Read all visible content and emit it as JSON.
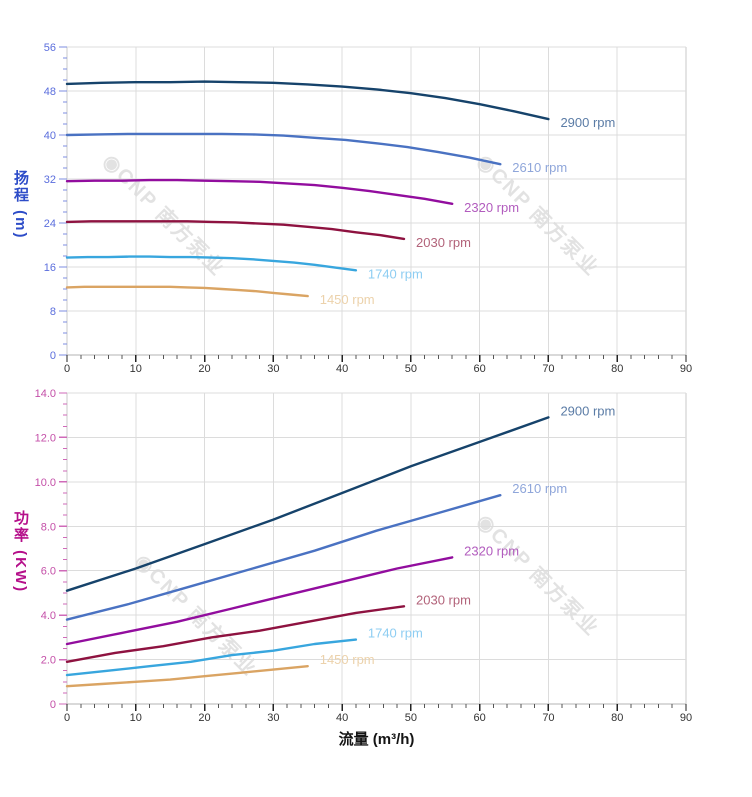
{
  "watermark": {
    "text": "CNP 南方泵业",
    "logo_glyph": "◉",
    "color": "rgba(140,140,140,0.25)"
  },
  "x_axis": {
    "title": "流量 (m³/h)",
    "min": 0,
    "max": 90,
    "major_step": 10,
    "minor_step": 2,
    "tick_labels": [
      "0",
      "10",
      "20",
      "30",
      "40",
      "50",
      "60",
      "70",
      "80",
      "90"
    ],
    "tick_label_color": "#333333"
  },
  "chart_data": [
    {
      "type": "line",
      "title": "",
      "xlabel": "流量 (m³/h)",
      "ylabel": "扬程 (m)",
      "xlim": [
        0,
        90
      ],
      "ylim": [
        0,
        56
      ],
      "y_major": 8,
      "y_minor": 2,
      "y_tick_labels": [
        "0",
        "8",
        "16",
        "24",
        "32",
        "40",
        "48",
        "56"
      ],
      "grid": true,
      "legend_position": "curve-end-right",
      "axis_title_color": "#2d4cc8",
      "tick_label_color": "#5b6edd",
      "tick_color": "#7c8ce0",
      "series": [
        {
          "name": "2900 rpm",
          "color": "#16436b",
          "label_color": "#5b7ca6",
          "points": [
            [
              0,
              49.3
            ],
            [
              5,
              49.5
            ],
            [
              10,
              49.6
            ],
            [
              15,
              49.6
            ],
            [
              20,
              49.7
            ],
            [
              25,
              49.6
            ],
            [
              30,
              49.5
            ],
            [
              35,
              49.2
            ],
            [
              40,
              48.8
            ],
            [
              45,
              48.3
            ],
            [
              50,
              47.6
            ],
            [
              55,
              46.7
            ],
            [
              60,
              45.6
            ],
            [
              65,
              44.3
            ],
            [
              70,
              42.9
            ]
          ]
        },
        {
          "name": "2610 rpm",
          "color": "#4a72c2",
          "label_color": "#8fa6da",
          "points": [
            [
              0,
              40.0
            ],
            [
              4.5,
              40.1
            ],
            [
              9,
              40.2
            ],
            [
              13.5,
              40.2
            ],
            [
              18,
              40.2
            ],
            [
              22.5,
              40.2
            ],
            [
              27,
              40.1
            ],
            [
              31.5,
              39.9
            ],
            [
              36,
              39.5
            ],
            [
              40.5,
              39.1
            ],
            [
              45,
              38.5
            ],
            [
              49.5,
              37.8
            ],
            [
              54,
              36.9
            ],
            [
              58.5,
              35.9
            ],
            [
              63,
              34.7
            ]
          ]
        },
        {
          "name": "2320 rpm",
          "color": "#920d9e",
          "label_color": "#b25cbe",
          "points": [
            [
              0,
              31.6
            ],
            [
              4,
              31.7
            ],
            [
              8,
              31.7
            ],
            [
              12,
              31.8
            ],
            [
              16,
              31.8
            ],
            [
              20,
              31.7
            ],
            [
              24,
              31.6
            ],
            [
              28,
              31.5
            ],
            [
              32,
              31.2
            ],
            [
              36,
              30.9
            ],
            [
              40,
              30.4
            ],
            [
              44,
              29.8
            ],
            [
              48,
              29.1
            ],
            [
              52,
              28.4
            ],
            [
              56,
              27.5
            ]
          ]
        },
        {
          "name": "2030 rpm",
          "color": "#8e1240",
          "label_color": "#b2637a",
          "points": [
            [
              0,
              24.2
            ],
            [
              3.5,
              24.3
            ],
            [
              7,
              24.3
            ],
            [
              10.5,
              24.3
            ],
            [
              14,
              24.3
            ],
            [
              17.5,
              24.3
            ],
            [
              21,
              24.2
            ],
            [
              24.5,
              24.1
            ],
            [
              28,
              23.9
            ],
            [
              31.5,
              23.7
            ],
            [
              35,
              23.3
            ],
            [
              38.5,
              22.9
            ],
            [
              42,
              22.3
            ],
            [
              45.5,
              21.8
            ],
            [
              49,
              21.1
            ]
          ]
        },
        {
          "name": "1740 rpm",
          "color": "#38a6de",
          "label_color": "#8ecdf2",
          "points": [
            [
              0,
              17.7
            ],
            [
              3,
              17.8
            ],
            [
              6,
              17.8
            ],
            [
              9,
              17.9
            ],
            [
              12,
              17.9
            ],
            [
              15,
              17.8
            ],
            [
              18,
              17.8
            ],
            [
              21,
              17.7
            ],
            [
              24,
              17.6
            ],
            [
              27,
              17.4
            ],
            [
              30,
              17.1
            ],
            [
              33,
              16.8
            ],
            [
              36,
              16.4
            ],
            [
              39,
              15.9
            ],
            [
              42,
              15.4
            ]
          ]
        },
        {
          "name": "1450 rpm",
          "color": "#daa463",
          "label_color": "#ecd2ab",
          "points": [
            [
              0,
              12.3
            ],
            [
              2.5,
              12.4
            ],
            [
              5,
              12.4
            ],
            [
              7.5,
              12.4
            ],
            [
              10,
              12.4
            ],
            [
              12.5,
              12.4
            ],
            [
              15,
              12.4
            ],
            [
              17.5,
              12.3
            ],
            [
              20,
              12.2
            ],
            [
              22.5,
              12.0
            ],
            [
              25,
              11.8
            ],
            [
              27.5,
              11.6
            ],
            [
              30,
              11.3
            ],
            [
              32.5,
              11.0
            ],
            [
              35,
              10.7
            ]
          ]
        }
      ]
    },
    {
      "type": "line",
      "title": "",
      "xlabel": "流量 (m³/h)",
      "ylabel": "功率 (KW)",
      "xlim": [
        0,
        90
      ],
      "ylim": [
        0,
        14
      ],
      "y_major": 2,
      "y_minor": 0.5,
      "y_tick_labels": [
        "0",
        "2.0",
        "4.0",
        "6.0",
        "8.0",
        "10.0",
        "12.0",
        "14.0"
      ],
      "grid": true,
      "legend_position": "curve-end-right",
      "axis_title_color": "#b50f8a",
      "tick_label_color": "#c44fa8",
      "tick_color": "#cf6ab8",
      "series": [
        {
          "name": "2900 rpm",
          "color": "#16436b",
          "label_color": "#5b7ca6",
          "points": [
            [
              0,
              5.1
            ],
            [
              10,
              6.1
            ],
            [
              20,
              7.2
            ],
            [
              30,
              8.3
            ],
            [
              40,
              9.5
            ],
            [
              50,
              10.7
            ],
            [
              60,
              11.8
            ],
            [
              70,
              12.9
            ]
          ]
        },
        {
          "name": "2610 rpm",
          "color": "#4a72c2",
          "label_color": "#8fa6da",
          "points": [
            [
              0,
              3.8
            ],
            [
              9,
              4.5
            ],
            [
              18,
              5.3
            ],
            [
              27,
              6.1
            ],
            [
              36,
              6.9
            ],
            [
              45,
              7.8
            ],
            [
              54,
              8.6
            ],
            [
              63,
              9.4
            ]
          ]
        },
        {
          "name": "2320 rpm",
          "color": "#920d9e",
          "label_color": "#b25cbe",
          "points": [
            [
              0,
              2.7
            ],
            [
              8,
              3.2
            ],
            [
              16,
              3.7
            ],
            [
              24,
              4.3
            ],
            [
              32,
              4.9
            ],
            [
              40,
              5.5
            ],
            [
              48,
              6.1
            ],
            [
              56,
              6.6
            ]
          ]
        },
        {
          "name": "2030 rpm",
          "color": "#8e1240",
          "label_color": "#b2637a",
          "points": [
            [
              0,
              1.9
            ],
            [
              7,
              2.3
            ],
            [
              14,
              2.6
            ],
            [
              21,
              3.0
            ],
            [
              28,
              3.3
            ],
            [
              35,
              3.7
            ],
            [
              42,
              4.1
            ],
            [
              49,
              4.4
            ]
          ]
        },
        {
          "name": "1740 rpm",
          "color": "#38a6de",
          "label_color": "#8ecdf2",
          "points": [
            [
              0,
              1.3
            ],
            [
              6,
              1.5
            ],
            [
              12,
              1.7
            ],
            [
              18,
              1.9
            ],
            [
              24,
              2.2
            ],
            [
              30,
              2.4
            ],
            [
              36,
              2.7
            ],
            [
              42,
              2.9
            ]
          ]
        },
        {
          "name": "1450 rpm",
          "color": "#daa463",
          "label_color": "#ecd2ab",
          "points": [
            [
              0,
              0.8
            ],
            [
              5,
              0.9
            ],
            [
              10,
              1.0
            ],
            [
              15,
              1.1
            ],
            [
              20,
              1.25
            ],
            [
              25,
              1.4
            ],
            [
              30,
              1.55
            ],
            [
              35,
              1.7
            ]
          ]
        }
      ]
    }
  ]
}
